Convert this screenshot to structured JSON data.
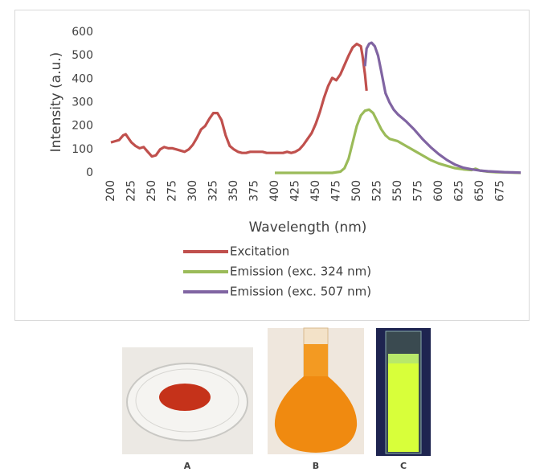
{
  "chart_data": {
    "type": "line",
    "xlabel": "Wavelength (nm)",
    "ylabel": "Intensity (a.u.)",
    "xlim": [
      200,
      700
    ],
    "ylim": [
      0,
      600
    ],
    "xticks": [
      200,
      225,
      250,
      275,
      300,
      325,
      350,
      375,
      400,
      425,
      450,
      475,
      500,
      525,
      550,
      575,
      600,
      625,
      650,
      675
    ],
    "yticks": [
      0,
      100,
      200,
      300,
      400,
      500,
      600
    ],
    "grid": false,
    "legend": "bottom",
    "series": [
      {
        "name": "Excitation",
        "color": "#c0504d",
        "x": [
          200,
          205,
          210,
          215,
          218,
          222,
          225,
          230,
          235,
          240,
          245,
          250,
          255,
          260,
          265,
          270,
          275,
          280,
          285,
          290,
          295,
          300,
          305,
          310,
          315,
          320,
          325,
          330,
          335,
          340,
          345,
          350,
          355,
          360,
          365,
          370,
          375,
          380,
          385,
          390,
          395,
          400,
          405,
          410,
          415,
          420,
          425,
          430,
          435,
          440,
          445,
          450,
          455,
          460,
          465,
          470,
          475,
          480,
          485,
          490,
          495,
          500,
          505,
          507,
          510,
          512
        ],
        "values": [
          130,
          135,
          140,
          160,
          165,
          145,
          130,
          115,
          105,
          110,
          90,
          70,
          75,
          100,
          110,
          105,
          105,
          100,
          95,
          90,
          100,
          120,
          150,
          185,
          200,
          230,
          255,
          255,
          225,
          160,
          115,
          100,
          90,
          85,
          85,
          90,
          90,
          90,
          90,
          85,
          85,
          85,
          85,
          85,
          90,
          85,
          90,
          100,
          120,
          145,
          170,
          210,
          260,
          320,
          370,
          405,
          395,
          420,
          460,
          500,
          535,
          550,
          540,
          500,
          420,
          350
        ]
      },
      {
        "name": "Emission (exc. 324 nm)",
        "color": "#9bbb59",
        "x": [
          400,
          420,
          440,
          460,
          470,
          480,
          485,
          490,
          495,
          500,
          505,
          510,
          515,
          520,
          525,
          530,
          535,
          540,
          550,
          560,
          570,
          580,
          590,
          600,
          610,
          620,
          630,
          640,
          645,
          650,
          660,
          670,
          680,
          700
        ],
        "values": [
          0,
          0,
          0,
          0,
          0,
          5,
          20,
          60,
          130,
          200,
          245,
          265,
          270,
          255,
          220,
          185,
          160,
          145,
          135,
          115,
          95,
          75,
          55,
          40,
          30,
          20,
          15,
          12,
          18,
          10,
          5,
          3,
          2,
          0
        ]
      },
      {
        "name": "Emission (exc. 507 nm)",
        "color": "#8064a2",
        "x": [
          510,
          512,
          515,
          518,
          522,
          526,
          530,
          535,
          540,
          545,
          550,
          560,
          570,
          580,
          590,
          600,
          610,
          620,
          630,
          640,
          650,
          660,
          670,
          680,
          690,
          700
        ],
        "values": [
          455,
          530,
          550,
          555,
          540,
          500,
          430,
          340,
          300,
          270,
          250,
          220,
          185,
          145,
          110,
          80,
          55,
          35,
          22,
          15,
          10,
          7,
          5,
          3,
          2,
          1
        ]
      }
    ]
  },
  "panels": [
    {
      "label": "A"
    },
    {
      "label": "B"
    },
    {
      "label": "C"
    }
  ]
}
